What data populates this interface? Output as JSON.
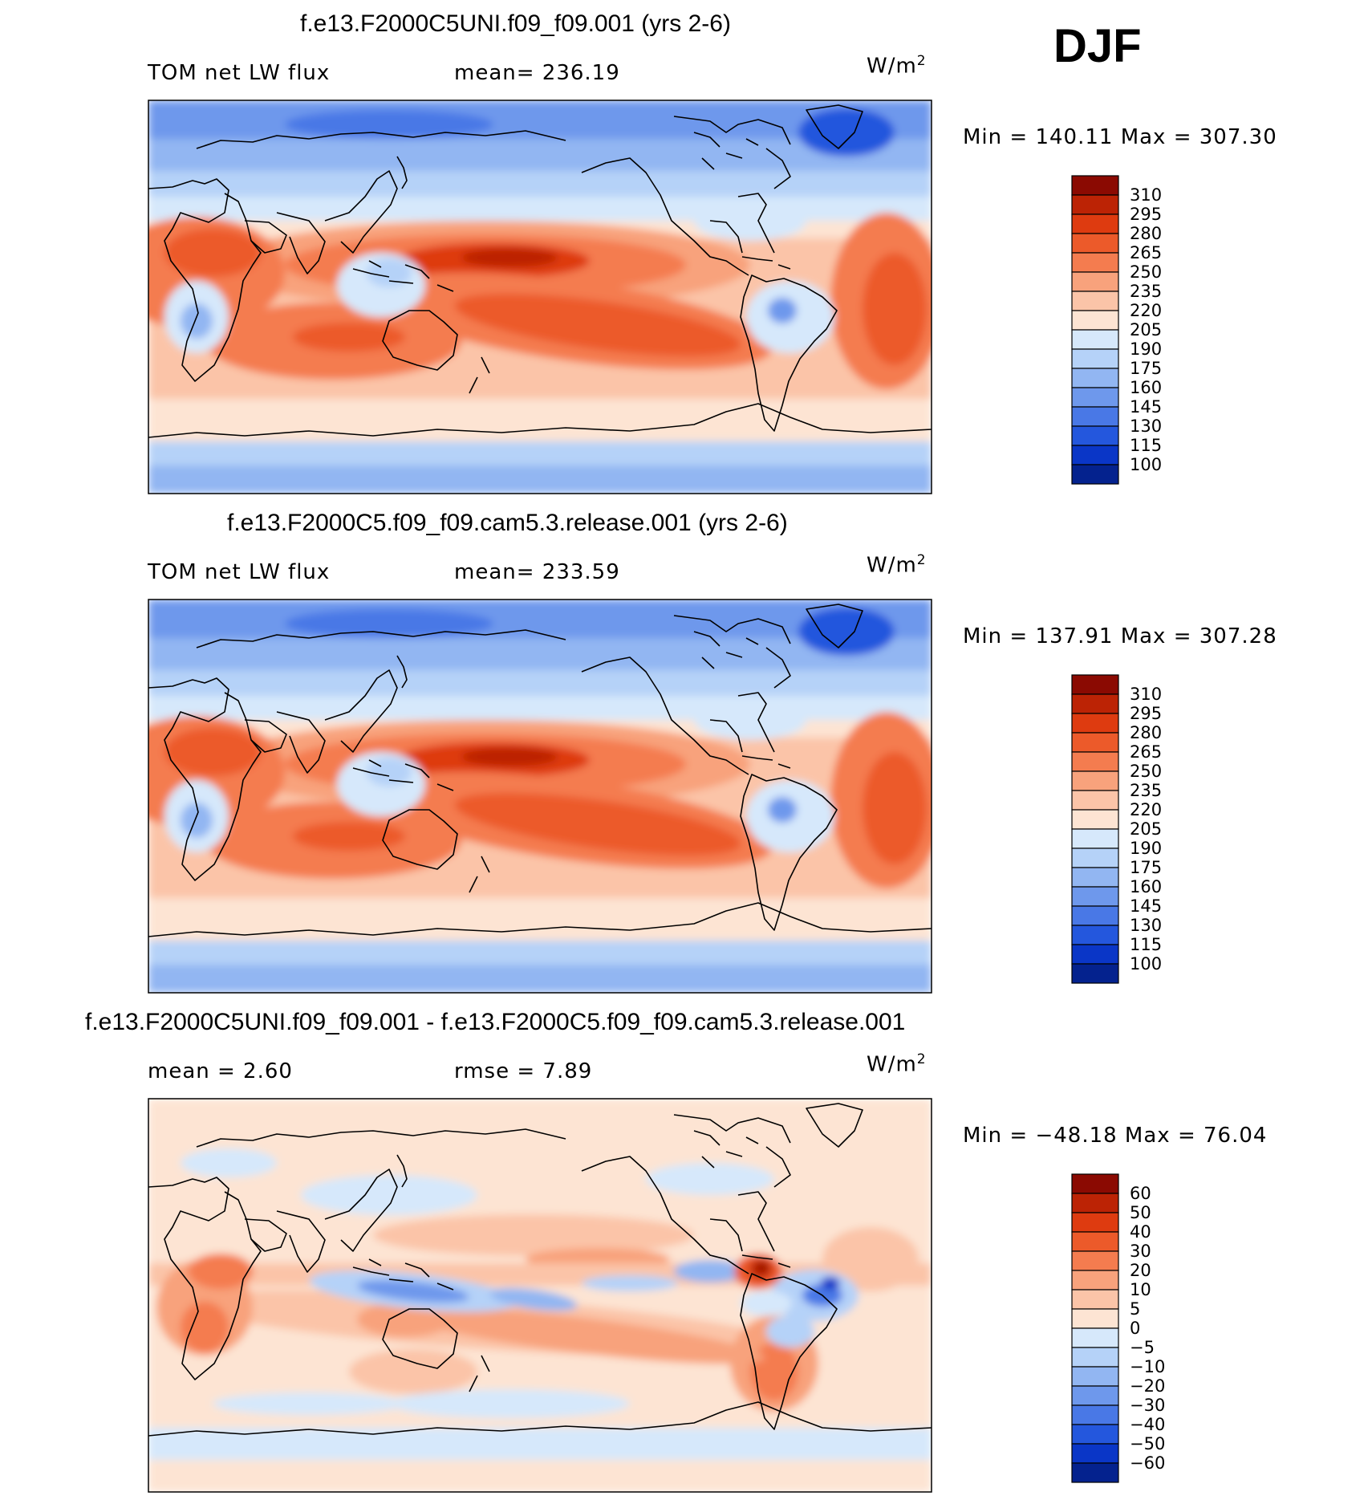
{
  "figure": {
    "season": "DJF",
    "units_main": "W/m",
    "units_sup": "2"
  },
  "colors": {
    "warm": [
      "#fde4d3",
      "#fbc4a8",
      "#f8a27c",
      "#f47c4f",
      "#ec5a2a",
      "#de3b10",
      "#bc2305",
      "#8b0a02"
    ],
    "cool": [
      "#d6e8fb",
      "#b5d2f8",
      "#92b6f2",
      "#6e98ec",
      "#4978e6",
      "#2457dd",
      "#0a36c7",
      "#04228e"
    ]
  },
  "chart_data": [
    {
      "type": "contour_map",
      "title": "f.e13.F2000C5UNI.f09_f09.001 (yrs 2-6)",
      "left_label": "TOM net LW flux",
      "center_label": "mean= 236.19",
      "minmax": "Min  =  140.11  Max  =  307.30",
      "stats": {
        "mean": 236.19,
        "min": 140.11,
        "max": 307.3
      },
      "levels": [
        "310",
        "295",
        "280",
        "265",
        "250",
        "235",
        "220",
        "205",
        "190",
        "175",
        "160",
        "145",
        "130",
        "115",
        "100"
      ],
      "colorbar": [
        "#8b0a02",
        "#bc2305",
        "#de3b10",
        "#ec5a2a",
        "#f47c4f",
        "#f8a27c",
        "#fbc4a8",
        "#fde4d3",
        "#d6e8fb",
        "#b5d2f8",
        "#92b6f2",
        "#6e98ec",
        "#4978e6",
        "#2457dd",
        "#0a36c7",
        "#04228e"
      ]
    },
    {
      "type": "contour_map",
      "title": "f.e13.F2000C5.f09_f09.cam5.3.release.001 (yrs 2-6)",
      "left_label": "TOM net LW flux",
      "center_label": "mean= 233.59",
      "minmax": "Min  =  137.91  Max  =  307.28",
      "stats": {
        "mean": 233.59,
        "min": 137.91,
        "max": 307.28
      },
      "levels": [
        "310",
        "295",
        "280",
        "265",
        "250",
        "235",
        "220",
        "205",
        "190",
        "175",
        "160",
        "145",
        "130",
        "115",
        "100"
      ],
      "colorbar": [
        "#8b0a02",
        "#bc2305",
        "#de3b10",
        "#ec5a2a",
        "#f47c4f",
        "#f8a27c",
        "#fbc4a8",
        "#fde4d3",
        "#d6e8fb",
        "#b5d2f8",
        "#92b6f2",
        "#6e98ec",
        "#4978e6",
        "#2457dd",
        "#0a36c7",
        "#04228e"
      ]
    },
    {
      "type": "contour_map",
      "title": "f.e13.F2000C5UNI.f09_f09.001 - f.e13.F2000C5.f09_f09.cam5.3.release.001",
      "left_label": "mean  =     2.60",
      "center_label": "rmse  =     7.89",
      "minmax": "Min  =  −48.18  Max  =    76.04",
      "stats": {
        "mean": 2.6,
        "rmse": 7.89,
        "min": -48.18,
        "max": 76.04
      },
      "levels": [
        "60",
        "50",
        "40",
        "30",
        "20",
        "10",
        "5",
        "0",
        "−5",
        "−10",
        "−20",
        "−30",
        "−40",
        "−50",
        "−60"
      ],
      "colorbar": [
        "#8b0a02",
        "#bc2305",
        "#de3b10",
        "#ec5a2a",
        "#f47c4f",
        "#f8a27c",
        "#fbc4a8",
        "#fde4d3",
        "#d6e8fb",
        "#b5d2f8",
        "#92b6f2",
        "#6e98ec",
        "#4978e6",
        "#2457dd",
        "#0a36c7",
        "#04228e"
      ]
    }
  ]
}
